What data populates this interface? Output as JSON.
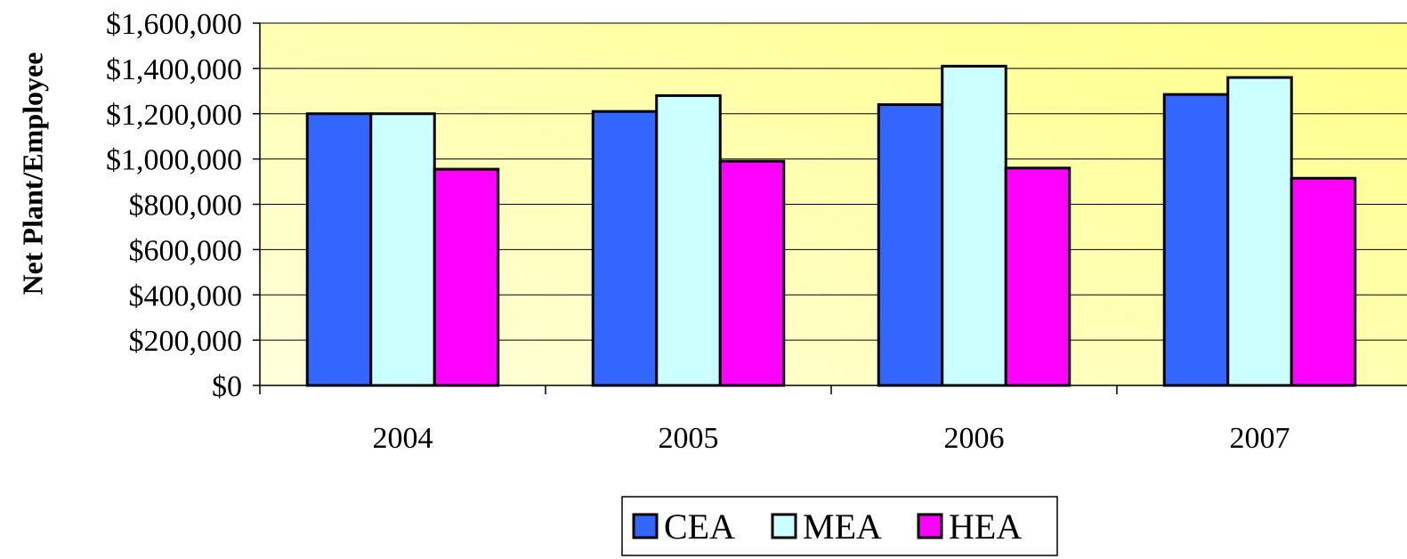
{
  "chart_data": {
    "type": "bar",
    "y_label": "Net Plant/Employee",
    "categories": [
      "2004",
      "2005",
      "2006",
      "2007"
    ],
    "series": [
      {
        "name": "CEA",
        "color": "#3366ff",
        "values": [
          1200000,
          1210000,
          1240000,
          1285000
        ]
      },
      {
        "name": "MEA",
        "color": "#ccffff",
        "values": [
          1200000,
          1280000,
          1410000,
          1360000
        ]
      },
      {
        "name": "HEA",
        "color": "#ff00ff",
        "values": [
          955000,
          990000,
          960000,
          915000
        ]
      }
    ],
    "ylim": [
      0,
      1600000
    ],
    "yticks": [
      {
        "value": 0,
        "label": "$0"
      },
      {
        "value": 200000,
        "label": "$200,000"
      },
      {
        "value": 400000,
        "label": "$400,000"
      },
      {
        "value": 600000,
        "label": "$600,000"
      },
      {
        "value": 800000,
        "label": "$800,000"
      },
      {
        "value": 1000000,
        "label": "$1,000,000"
      },
      {
        "value": 1200000,
        "label": "$1,200,000"
      },
      {
        "value": 1400000,
        "label": "$1,400,000"
      },
      {
        "value": 1600000,
        "label": "$1,600,000"
      }
    ],
    "grid": true,
    "legend": "bottom"
  }
}
